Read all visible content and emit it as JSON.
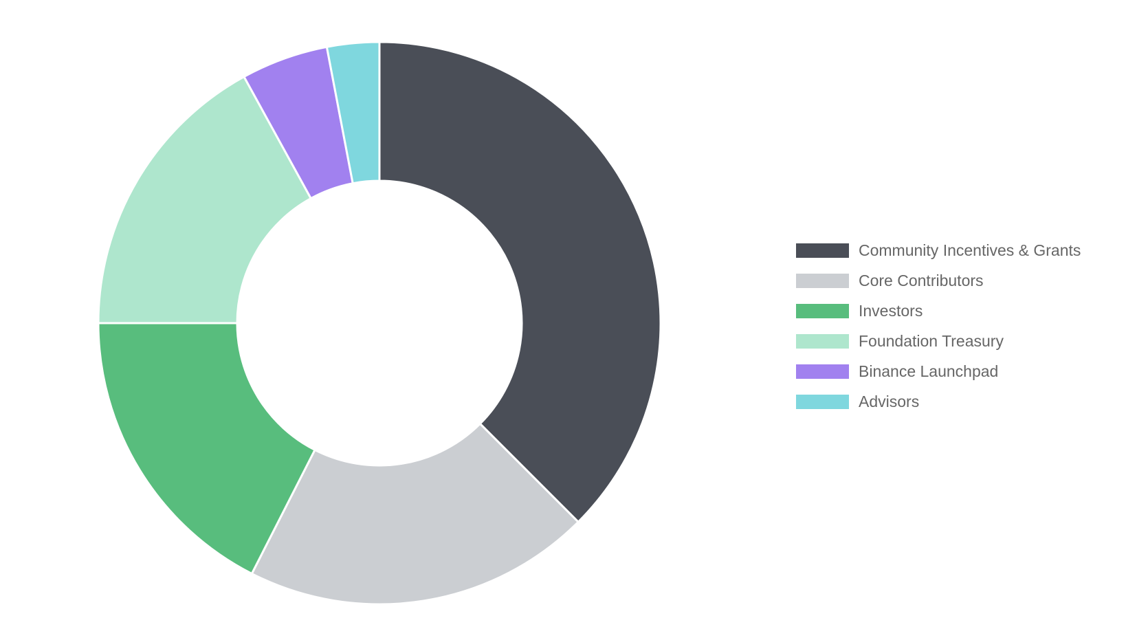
{
  "chart_data": {
    "type": "pie",
    "variant": "donut",
    "categories": [
      "Community Incentives & Grants",
      "Core Contributors",
      "Investors",
      "Foundation Treasury",
      "Binance Launchpad",
      "Advisors"
    ],
    "values": [
      37.5,
      20,
      17.5,
      17,
      5,
      3
    ],
    "unit": "%",
    "colors": [
      "#4a4e57",
      "#cbced2",
      "#58bd7d",
      "#aee6cd",
      "#a181ef",
      "#7fd7de"
    ],
    "legend_position": "right",
    "title": ""
  }
}
